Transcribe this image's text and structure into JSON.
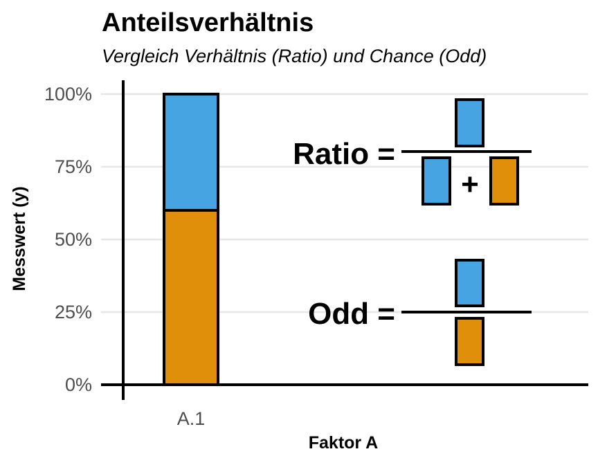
{
  "chart_data": {
    "type": "bar",
    "title": "Anteilsverhältnis",
    "subtitle": "Vergleich Verhältnis (Ratio) und Chance (Odd)",
    "xlabel": "Faktor A",
    "ylabel": "Messwert (y)",
    "categories": [
      "A.1"
    ],
    "stacked": true,
    "ylim": [
      0,
      1
    ],
    "yticks": [
      0,
      0.25,
      0.5,
      0.75,
      1.0
    ],
    "ytick_labels": [
      "0%",
      "25%",
      "50%",
      "75%",
      "100%"
    ],
    "series": [
      {
        "values": [
          0.6
        ],
        "color": "#E08F0B"
      },
      {
        "values": [
          0.4
        ],
        "color": "#47A4E3"
      }
    ],
    "grid": true,
    "annotations": {
      "ratio_label": "Ratio =",
      "ratio_plus": "+",
      "odd_label": "Odd ="
    }
  }
}
